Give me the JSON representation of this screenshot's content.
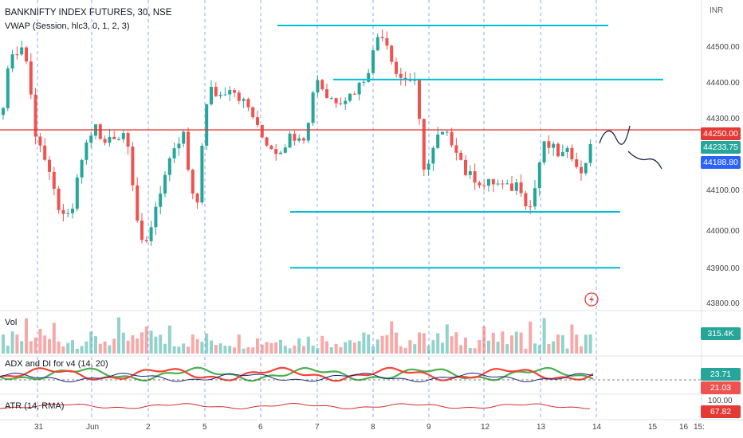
{
  "header": {
    "symbol_title": "BANKNIFTY INDEX FUTURES, 30, NSE",
    "indicator": "VWAP (Session, hlc3, 0, 1, 2, 3)",
    "currency": "INR"
  },
  "price_axis": {
    "ticks": [
      "44500.00",
      "44400.00",
      "44300.00",
      "44200.00",
      "44100.00",
      "44000.00",
      "43900.00",
      "43800.00"
    ]
  },
  "price_tags": {
    "alert_price": "44250.00",
    "last_price": "44233.75",
    "vwap_price": "44188.80"
  },
  "volume": {
    "label": "Vol",
    "value": "315.4K"
  },
  "adx": {
    "label": "ADX and DI for v4 (14, 20)",
    "value_green": "23.71",
    "value_red": "21.03"
  },
  "atr": {
    "label": "ATR (14, RMA)",
    "axis_tick": "100.00",
    "value": "67.82"
  },
  "time_axis": {
    "ticks": [
      "31",
      "Jun",
      "2",
      "5",
      "6",
      "7",
      "8",
      "9",
      "12",
      "13",
      "14",
      "15",
      "16",
      "15:"
    ]
  },
  "colors": {
    "up": "#26a69a",
    "down": "#ef5350",
    "horizontal_level": "#00bcd4",
    "alert_line": "#e53935",
    "last_tag": "#26a69a",
    "vwap_tag": "#2962ff",
    "session_divider": "#2962ff"
  },
  "chart_data": {
    "type": "candlestick",
    "y_range": [
      43780,
      44560
    ],
    "levels": [
      44530,
      44385,
      44250,
      44030,
      43880
    ],
    "x_labels": [
      "31",
      "Jun",
      "2",
      "5",
      "6",
      "7",
      "8",
      "9",
      "12",
      "13",
      "14",
      "15",
      "16"
    ]
  }
}
